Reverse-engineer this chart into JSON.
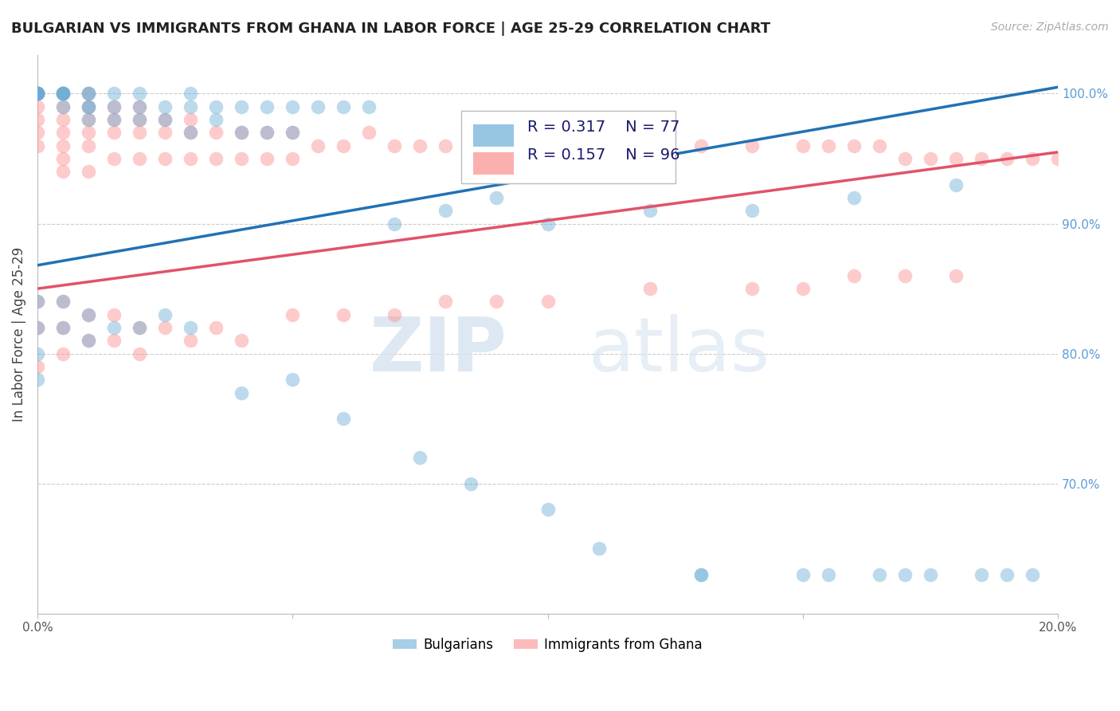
{
  "title": "BULGARIAN VS IMMIGRANTS FROM GHANA IN LABOR FORCE | AGE 25-29 CORRELATION CHART",
  "source": "Source: ZipAtlas.com",
  "ylabel": "In Labor Force | Age 25-29",
  "xlim": [
    0.0,
    0.2
  ],
  "ylim": [
    0.6,
    1.03
  ],
  "x_ticks": [
    0.0,
    0.05,
    0.1,
    0.15,
    0.2
  ],
  "x_tick_labels": [
    "0.0%",
    "",
    "",
    "",
    "20.0%"
  ],
  "y_ticks_right": [
    0.7,
    0.8,
    0.9,
    1.0
  ],
  "y_tick_labels_right": [
    "70.0%",
    "80.0%",
    "90.0%",
    "100.0%"
  ],
  "blue_color": "#6baed6",
  "pink_color": "#fc8d8d",
  "blue_line_color": "#2171b5",
  "pink_line_color": "#e0536a",
  "legend_R_blue": "R = 0.317",
  "legend_N_blue": "N = 77",
  "legend_R_pink": "R = 0.157",
  "legend_N_pink": "N = 96",
  "legend_label_blue": "Bulgarians",
  "legend_label_pink": "Immigrants from Ghana",
  "watermark1": "ZIP",
  "watermark2": "atlas",
  "grid_color": "#cccccc",
  "bg_color": "#ffffff",
  "title_fontsize": 13,
  "axis_label_fontsize": 12,
  "tick_fontsize": 11,
  "legend_fontsize": 13,
  "blue_trendline_x": [
    0.0,
    0.2
  ],
  "blue_trendline_y": [
    0.868,
    1.005
  ],
  "pink_trendline_x": [
    0.0,
    0.2
  ],
  "pink_trendline_y": [
    0.85,
    0.955
  ],
  "blue_x": [
    0.0,
    0.0,
    0.0,
    0.0,
    0.0,
    0.0,
    0.0,
    0.005,
    0.005,
    0.005,
    0.005,
    0.005,
    0.005,
    0.01,
    0.01,
    0.01,
    0.01,
    0.01,
    0.015,
    0.015,
    0.015,
    0.02,
    0.02,
    0.02,
    0.025,
    0.025,
    0.03,
    0.03,
    0.03,
    0.035,
    0.035,
    0.04,
    0.04,
    0.045,
    0.045,
    0.05,
    0.05,
    0.055,
    0.06,
    0.065,
    0.07,
    0.08,
    0.09,
    0.1,
    0.12,
    0.14,
    0.16,
    0.18,
    0.0,
    0.0,
    0.0,
    0.0,
    0.005,
    0.005,
    0.01,
    0.01,
    0.015,
    0.02,
    0.025,
    0.03,
    0.04,
    0.05,
    0.06,
    0.075,
    0.085,
    0.1,
    0.11,
    0.13,
    0.155,
    0.165,
    0.175,
    0.185,
    0.195,
    0.19,
    0.17,
    0.15,
    0.13
  ],
  "blue_y": [
    1.0,
    1.0,
    1.0,
    1.0,
    1.0,
    1.0,
    1.0,
    1.0,
    1.0,
    1.0,
    1.0,
    1.0,
    0.99,
    1.0,
    1.0,
    0.99,
    0.99,
    0.98,
    1.0,
    0.99,
    0.98,
    1.0,
    0.99,
    0.98,
    0.99,
    0.98,
    1.0,
    0.99,
    0.97,
    0.99,
    0.98,
    0.99,
    0.97,
    0.99,
    0.97,
    0.99,
    0.97,
    0.99,
    0.99,
    0.99,
    0.9,
    0.91,
    0.92,
    0.9,
    0.91,
    0.91,
    0.92,
    0.93,
    0.84,
    0.82,
    0.8,
    0.78,
    0.84,
    0.82,
    0.83,
    0.81,
    0.82,
    0.82,
    0.83,
    0.82,
    0.77,
    0.78,
    0.75,
    0.72,
    0.7,
    0.68,
    0.65,
    0.63,
    0.63,
    0.63,
    0.63,
    0.63,
    0.63,
    0.63,
    0.63,
    0.63,
    0.63
  ],
  "pink_x": [
    0.0,
    0.0,
    0.0,
    0.0,
    0.0,
    0.0,
    0.0,
    0.0,
    0.0,
    0.005,
    0.005,
    0.005,
    0.005,
    0.005,
    0.005,
    0.005,
    0.01,
    0.01,
    0.01,
    0.01,
    0.01,
    0.01,
    0.015,
    0.015,
    0.015,
    0.015,
    0.02,
    0.02,
    0.02,
    0.02,
    0.025,
    0.025,
    0.025,
    0.03,
    0.03,
    0.03,
    0.035,
    0.035,
    0.04,
    0.04,
    0.045,
    0.045,
    0.05,
    0.05,
    0.055,
    0.06,
    0.065,
    0.07,
    0.075,
    0.08,
    0.085,
    0.09,
    0.1,
    0.11,
    0.12,
    0.13,
    0.14,
    0.15,
    0.155,
    0.16,
    0.165,
    0.17,
    0.175,
    0.18,
    0.185,
    0.19,
    0.195,
    0.2,
    0.0,
    0.0,
    0.0,
    0.005,
    0.005,
    0.005,
    0.01,
    0.01,
    0.015,
    0.015,
    0.02,
    0.02,
    0.025,
    0.03,
    0.035,
    0.04,
    0.05,
    0.06,
    0.07,
    0.08,
    0.09,
    0.1,
    0.12,
    0.14,
    0.15,
    0.16,
    0.17,
    0.18
  ],
  "pink_y": [
    1.0,
    1.0,
    1.0,
    1.0,
    1.0,
    0.99,
    0.98,
    0.97,
    0.96,
    1.0,
    0.99,
    0.98,
    0.97,
    0.96,
    0.95,
    0.94,
    1.0,
    0.99,
    0.98,
    0.97,
    0.96,
    0.94,
    0.99,
    0.98,
    0.97,
    0.95,
    0.99,
    0.98,
    0.97,
    0.95,
    0.98,
    0.97,
    0.95,
    0.98,
    0.97,
    0.95,
    0.97,
    0.95,
    0.97,
    0.95,
    0.97,
    0.95,
    0.97,
    0.95,
    0.96,
    0.96,
    0.97,
    0.96,
    0.96,
    0.96,
    0.96,
    0.96,
    0.96,
    0.96,
    0.96,
    0.96,
    0.96,
    0.96,
    0.96,
    0.96,
    0.96,
    0.95,
    0.95,
    0.95,
    0.95,
    0.95,
    0.95,
    0.95,
    0.84,
    0.82,
    0.79,
    0.84,
    0.82,
    0.8,
    0.83,
    0.81,
    0.83,
    0.81,
    0.82,
    0.8,
    0.82,
    0.81,
    0.82,
    0.81,
    0.83,
    0.83,
    0.83,
    0.84,
    0.84,
    0.84,
    0.85,
    0.85,
    0.85,
    0.86,
    0.86,
    0.86
  ]
}
